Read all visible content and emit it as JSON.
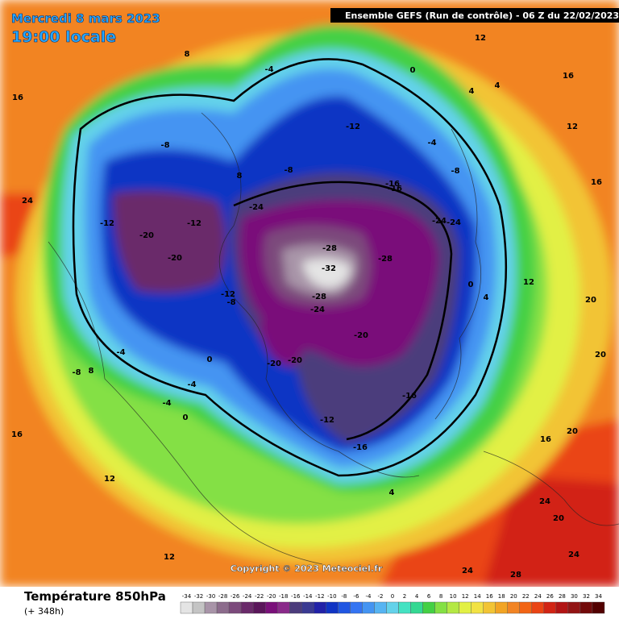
{
  "header": {
    "date": "Mercredi 8 mars 2023",
    "time": "19:00 locale",
    "run": "Ensemble GEFS  (Run de contrôle)  -  06 Z du 22/02/2023",
    "copyright": "Copyright © 2023 Meteociel.fr"
  },
  "footer": {
    "title": "Température 850hPa",
    "lead": "(+ 348h)"
  },
  "colorbar": {
    "ticks": [
      -34,
      -32,
      -30,
      -28,
      -26,
      -24,
      -22,
      -20,
      -18,
      -16,
      -14,
      -12,
      -10,
      -8,
      -6,
      -4,
      -2,
      0,
      2,
      4,
      6,
      8,
      10,
      12,
      14,
      16,
      18,
      20,
      22,
      24,
      26,
      28,
      30,
      32,
      34
    ],
    "colors": [
      "#e4e4e4",
      "#c4c4c4",
      "#a894a8",
      "#8c6c8c",
      "#7c4a7c",
      "#6a2a6a",
      "#5a165a",
      "#7a107a",
      "#8a2a8a",
      "#4c3c7c",
      "#3a3a92",
      "#2222a8",
      "#1034c4",
      "#2056e2",
      "#3474f2",
      "#4494f2",
      "#56b4f2",
      "#64d2ea",
      "#44e2c2",
      "#34d892",
      "#44d044",
      "#84e044",
      "#b4e844",
      "#e2f044",
      "#f2e244",
      "#f2c434",
      "#f2a424",
      "#f28424",
      "#f26414",
      "#ea4414",
      "#d22414",
      "#b21414",
      "#921414",
      "#720a0a",
      "#520000"
    ]
  },
  "map_labels": [
    -32,
    -28,
    -28,
    -28,
    -24,
    -24,
    -24,
    -24,
    -20,
    -20,
    -20,
    -20,
    -20,
    -16,
    -16,
    -16,
    -16,
    -12,
    -12,
    -12,
    -12,
    -12,
    -8,
    -8,
    -8,
    -8,
    -8,
    -4,
    -4,
    -4,
    -4,
    -4,
    0,
    0,
    0,
    0,
    4,
    4,
    4,
    4,
    8,
    8,
    8,
    12,
    12,
    12,
    12,
    12,
    16,
    16,
    16,
    16,
    16,
    20,
    20,
    20,
    20,
    24,
    24,
    24,
    24,
    28
  ]
}
